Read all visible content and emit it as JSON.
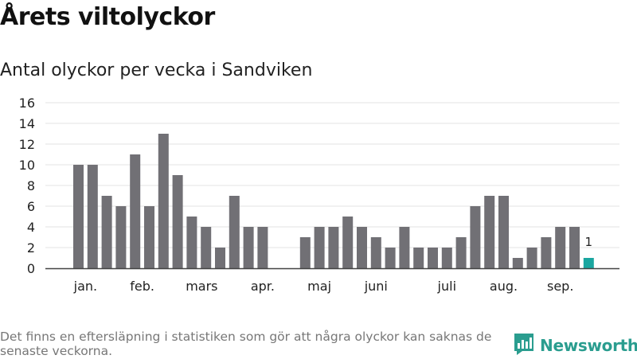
{
  "header": {
    "title": "Årets viltolyckor",
    "subtitle": "Antal olyckor per vecka i Sandviken"
  },
  "footer": {
    "note": "Det finns en eftersläpning i statistiken som gör att några olyckor kan saknas de senaste veckorna.",
    "brand": "Newsworthy"
  },
  "colors": {
    "bar": "#717075",
    "highlight": "#1aa6a0",
    "grid": "#e3e3e3",
    "brand": "#2a9d8f"
  },
  "icons": {
    "brand_logo": "bar-chart-speech-bubble-icon"
  },
  "chart_data": {
    "type": "bar",
    "title": "Antal olyckor per vecka i Sandviken",
    "xlabel": "",
    "ylabel": "",
    "ylim": [
      0,
      16
    ],
    "yticks": [
      0,
      2,
      4,
      6,
      8,
      10,
      12,
      14,
      16
    ],
    "grid": true,
    "weeks": [
      1,
      2,
      3,
      4,
      5,
      6,
      7,
      8,
      9,
      10,
      11,
      12,
      13,
      14,
      15,
      16,
      17,
      18,
      19,
      20,
      21,
      22,
      23,
      24,
      25,
      26,
      27,
      28,
      29,
      30,
      31,
      32,
      33,
      34,
      35,
      36,
      37
    ],
    "values": [
      10,
      10,
      7,
      6,
      11,
      6,
      13,
      9,
      5,
      4,
      2,
      7,
      4,
      4,
      0,
      0,
      3,
      4,
      4,
      5,
      4,
      3,
      2,
      4,
      2,
      2,
      2,
      3,
      6,
      7,
      7,
      1,
      2,
      3,
      4,
      4,
      1
    ],
    "highlight_week": 37,
    "data_labels": [
      {
        "week": 37,
        "text": "1"
      }
    ],
    "month_labels": [
      {
        "label": "jan.",
        "week": 1.5
      },
      {
        "label": "feb.",
        "week": 5.5
      },
      {
        "label": "mars",
        "week": 9.7
      },
      {
        "label": "apr.",
        "week": 14
      },
      {
        "label": "maj",
        "week": 18
      },
      {
        "label": "juni",
        "week": 22
      },
      {
        "label": "juli",
        "week": 27
      },
      {
        "label": "aug.",
        "week": 31
      },
      {
        "label": "sep.",
        "week": 35
      }
    ]
  }
}
